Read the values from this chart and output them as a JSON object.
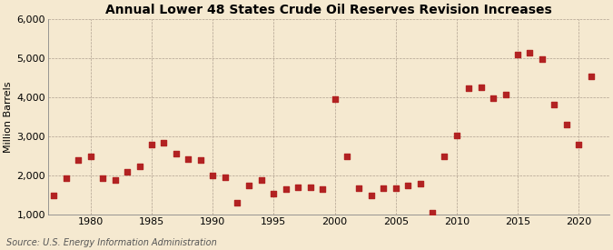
{
  "title": "Annual Lower 48 States Crude Oil Reserves Revision Increases",
  "ylabel": "Million Barrels",
  "source": "Source: U.S. Energy Information Administration",
  "background_color": "#f5e9d0",
  "plot_bg_color": "#f5e9d0",
  "marker_color": "#b22222",
  "marker_size": 18,
  "years": [
    1977,
    1978,
    1979,
    1980,
    1981,
    1982,
    1983,
    1984,
    1985,
    1986,
    1987,
    1988,
    1989,
    1990,
    1991,
    1992,
    1993,
    1994,
    1995,
    1996,
    1997,
    1998,
    1999,
    2000,
    2001,
    2002,
    2003,
    2004,
    2005,
    2006,
    2007,
    2008,
    2009,
    2010,
    2011,
    2012,
    2013,
    2014,
    2015,
    2016,
    2017,
    2018,
    2019,
    2020,
    2021
  ],
  "values": [
    1480,
    1930,
    2400,
    2490,
    1920,
    1880,
    2100,
    2230,
    2780,
    2840,
    2560,
    2410,
    2390,
    2000,
    1950,
    1310,
    1750,
    1880,
    1540,
    1640,
    1690,
    1700,
    1650,
    3950,
    2490,
    1670,
    1480,
    1680,
    1680,
    1740,
    1790,
    1040,
    2480,
    3020,
    4230,
    4260,
    3970,
    4060,
    5080,
    5130,
    4980,
    3820,
    3310,
    2800,
    4530
  ],
  "xlim": [
    1976.5,
    2022.5
  ],
  "ylim": [
    1000,
    6000
  ],
  "yticks": [
    1000,
    2000,
    3000,
    4000,
    5000,
    6000
  ],
  "xticks": [
    1980,
    1985,
    1990,
    1995,
    2000,
    2005,
    2010,
    2015,
    2020
  ],
  "title_fontsize": 10,
  "label_fontsize": 8,
  "tick_fontsize": 8,
  "source_fontsize": 7
}
